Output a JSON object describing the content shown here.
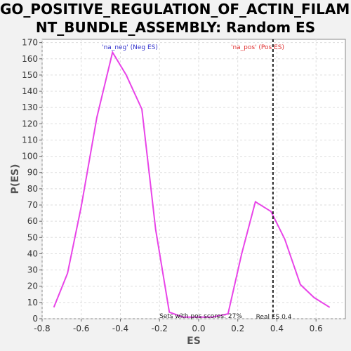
{
  "chart_data": {
    "type": "line",
    "title": "GO_POSITIVE_REGULATION_OF_ACTIN_FILAMENT_BUNDLE_ASSEMBLY: Random ES distribution",
    "title_lines": [
      "GO_POSITIVE_REGULATION_OF_ACTIN_FILAME",
      "NT_BUNDLE_ASSEMBLY: Random ES distribution"
    ],
    "xlabel": "ES",
    "ylabel": "P(ES)",
    "xlim": [
      -0.8,
      0.75
    ],
    "ylim": [
      0,
      172
    ],
    "xticks": [
      -0.8,
      -0.6,
      -0.4,
      -0.2,
      0.0,
      0.2,
      0.4,
      0.6
    ],
    "xtick_labels": [
      "-0.8",
      "-0.6",
      "-0.4",
      "-0.2",
      "0.0",
      "0.2",
      "0.4",
      "0.6"
    ],
    "yticks": [
      0,
      10,
      20,
      30,
      40,
      50,
      60,
      70,
      80,
      90,
      100,
      110,
      120,
      130,
      140,
      150,
      160,
      170
    ],
    "grid": true,
    "series": [
      {
        "color": "#e844e8",
        "x": [
          -0.74,
          -0.67,
          -0.6,
          -0.52,
          -0.44,
          -0.37,
          -0.29,
          -0.22,
          -0.15,
          -0.08,
          0.0,
          0.07,
          0.15,
          0.22,
          0.29,
          0.37,
          0.44,
          0.52,
          0.59,
          0.67
        ],
        "y": [
          7,
          28,
          69,
          124,
          164,
          150,
          129,
          55,
          4,
          1,
          1,
          1,
          3,
          40,
          72,
          66,
          49,
          21,
          13,
          7
        ]
      }
    ],
    "real_es": {
      "x": 0.38,
      "label": "Real ES 0.4"
    },
    "annotations": {
      "neg_label": "'na_neg' (Neg ES)",
      "neg_color": "#3333cc",
      "pos_label": "'na_pos' (Pos ES)",
      "pos_color": "#e03030",
      "sets_label": "Sets with pos scores: 27%"
    }
  }
}
